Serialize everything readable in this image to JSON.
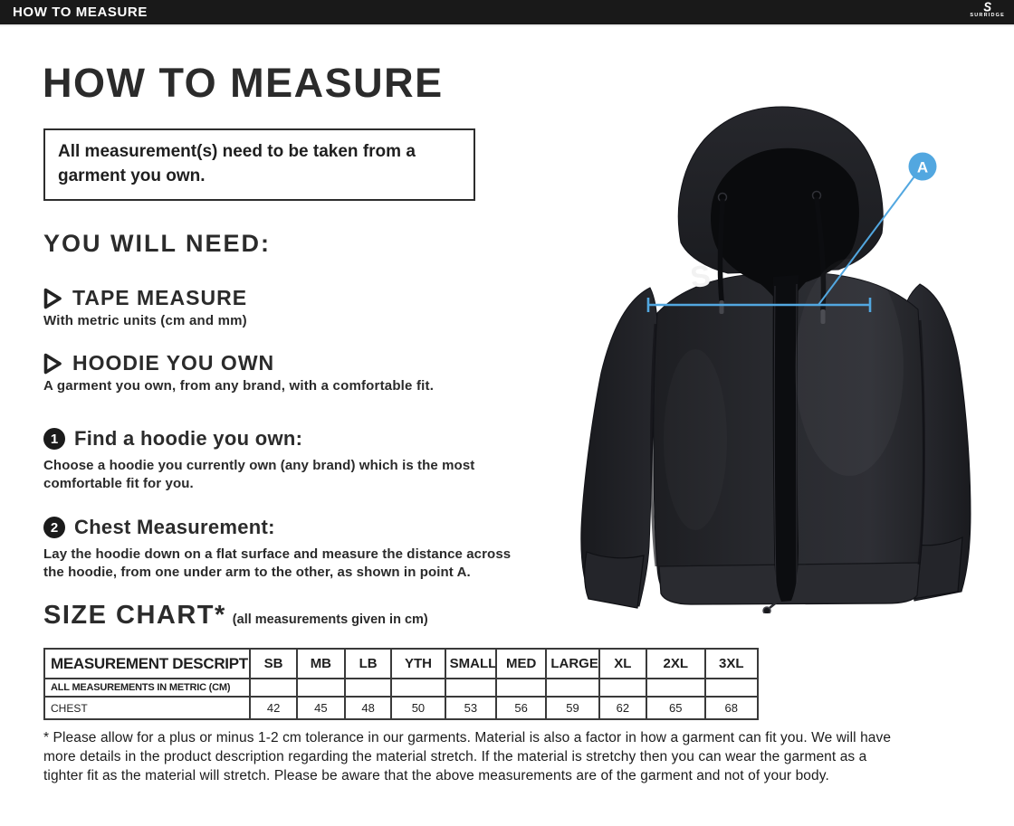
{
  "topbar": {
    "title": "HOW TO MEASURE",
    "brand": "SURRIDGE",
    "brand_mark": "S"
  },
  "page": {
    "heading": "HOW TO MEASURE",
    "notice": "All measurement(s) need to be taken from a\ngarment you own.",
    "you_will_need": {
      "heading": "YOU WILL NEED:",
      "items": [
        {
          "title": "TAPE MEASURE",
          "desc": "With metric units (cm and mm)"
        },
        {
          "title": "HOODIE YOU OWN",
          "desc": "A garment you own, from any brand, with a comfortable fit."
        }
      ]
    },
    "steps": [
      {
        "num": "1",
        "title": "Find a hoodie you own:",
        "desc": "Choose a hoodie you currently own (any brand) which is the most\ncomfortable fit for you."
      },
      {
        "num": "2",
        "title": "Chest Measurement:",
        "desc": "Lay the hoodie down on a flat surface and measure the distance across\nthe hoodie, from one under arm to the other, as shown in point A."
      }
    ],
    "size_chart": {
      "heading": "SIZE CHART*",
      "subheading": "(all measurements given in cm)",
      "table": {
        "headers": [
          "MEASUREMENT DESCRIPTION",
          "SB",
          "MB",
          "LB",
          "YTH",
          "SMALL",
          "MED",
          "LARGE",
          "XL",
          "2XL",
          "3XL"
        ],
        "rows": [
          {
            "label": "ALL MEASUREMENTS IN METRIC (CM)",
            "values": [
              "",
              "",
              "",
              "",
              "",
              "",
              "",
              "",
              "",
              ""
            ]
          },
          {
            "label": "CHEST",
            "values": [
              "42",
              "45",
              "48",
              "50",
              "53",
              "56",
              "59",
              "62",
              "65",
              "68"
            ]
          }
        ]
      }
    },
    "footnote": "* Please allow for a plus or minus 1-2 cm tolerance in our garments. Material is also a factor in how a garment can fit you. We will have\nmore details in the product description regarding the material stretch.  If the material is stretchy then you can wear the garment as a\ntighter fit as the material will stretch.  Please be aware that the above measurements are of the garment and not of your body."
  },
  "figure": {
    "marker_label": "A",
    "logo_letter": "S",
    "accent_color": "#52a7e0"
  }
}
